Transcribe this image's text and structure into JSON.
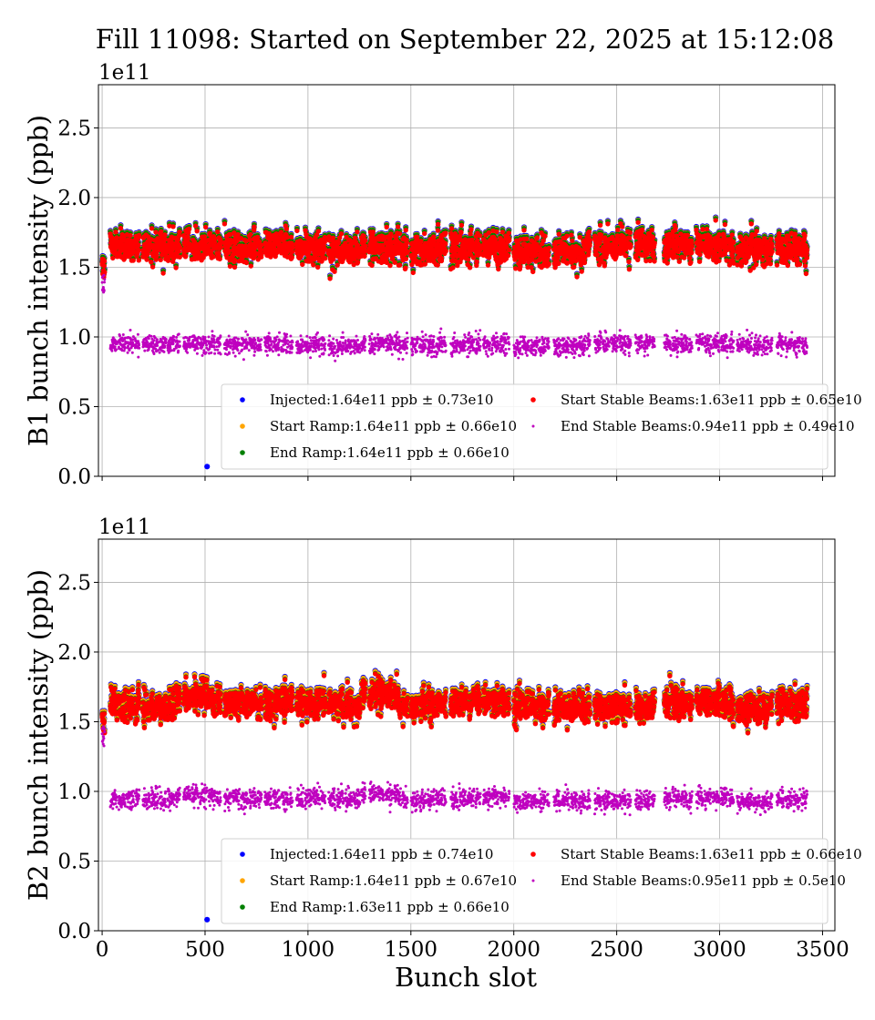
{
  "chart_data": [
    {
      "type": "scatter",
      "title": "Fill 11098: Started on September 22, 2025 at 15:12:08",
      "xlabel": "",
      "ylabel": "B1 bunch intensity (ppb)",
      "offset_text": "1e11",
      "xlim": [
        -18,
        3560
      ],
      "ylim": [
        0,
        2.81
      ],
      "xticks": [
        "0",
        "500",
        "1000",
        "1500",
        "2000",
        "2500",
        "3000",
        "3500"
      ],
      "xtick_values": [
        0,
        500,
        1000,
        1500,
        2000,
        2500,
        3000,
        3500
      ],
      "show_xtick_labels": false,
      "yticks": [
        "0.0",
        "0.5",
        "1.0",
        "1.5",
        "2.0",
        "2.5"
      ],
      "ytick_values": [
        0,
        0.5,
        1.0,
        1.5,
        2.0,
        2.5
      ],
      "grid": true,
      "legend_position": "lower-right",
      "trains": [
        [
          40,
          180
        ],
        [
          198,
          378
        ],
        [
          396,
          576
        ],
        [
          594,
          774
        ],
        [
          790,
          925
        ],
        [
          944,
          1084
        ],
        [
          1100,
          1279
        ],
        [
          1298,
          1484
        ],
        [
          1501,
          1670
        ],
        [
          1694,
          1838
        ],
        [
          1852,
          1978
        ],
        [
          2001,
          2171
        ],
        [
          2195,
          2370
        ],
        [
          2393,
          2568
        ],
        [
          2591,
          2684
        ],
        [
          2731,
          2866
        ],
        [
          2887,
          3068
        ],
        [
          3085,
          3255
        ],
        [
          3278,
          3425
        ]
      ],
      "pilot_slots": [
        0,
        1,
        2,
        3,
        4,
        5,
        6,
        7,
        8,
        9,
        10,
        11,
        12
      ],
      "series": [
        {
          "name": "Injected",
          "legend": "Injected:1.64e11 ppb ± 0.73e10",
          "mean": 1.64,
          "std": 0.073,
          "color": "#0000ff",
          "outliers": [
            [
              510,
              0.07
            ]
          ]
        },
        {
          "name": "Start Ramp",
          "legend": "Start Ramp:1.64e11 ppb ± 0.66e10",
          "mean": 1.64,
          "std": 0.066,
          "color": "#ffa500"
        },
        {
          "name": "End Ramp",
          "legend": "End Ramp:1.64e11 ppb ± 0.66e10",
          "mean": 1.64,
          "std": 0.066,
          "color": "#008000"
        },
        {
          "name": "Start Stable Beams",
          "legend": "Start Stable Beams:1.63e11 ppb ± 0.65e10",
          "mean": 1.63,
          "std": 0.065,
          "color": "#ff0000"
        },
        {
          "name": "End Stable Beams",
          "legend": "End Stable Beams:0.94e11 ppb ± 0.49e10",
          "mean": 0.94,
          "std": 0.049,
          "color": "#bf00bf"
        }
      ]
    },
    {
      "type": "scatter",
      "xlabel": "Bunch slot",
      "ylabel": "B2 bunch intensity (ppb)",
      "offset_text": "1e11",
      "xlim": [
        -18,
        3560
      ],
      "ylim": [
        0,
        2.81
      ],
      "xticks": [
        "0",
        "500",
        "1000",
        "1500",
        "2000",
        "2500",
        "3000",
        "3500"
      ],
      "xtick_values": [
        0,
        500,
        1000,
        1500,
        2000,
        2500,
        3000,
        3500
      ],
      "show_xtick_labels": true,
      "yticks": [
        "0.0",
        "0.5",
        "1.0",
        "1.5",
        "2.0",
        "2.5"
      ],
      "ytick_values": [
        0,
        0.5,
        1.0,
        1.5,
        2.0,
        2.5
      ],
      "grid": true,
      "legend_position": "lower-right",
      "trains": [
        [
          40,
          180
        ],
        [
          198,
          378
        ],
        [
          396,
          576
        ],
        [
          594,
          774
        ],
        [
          790,
          925
        ],
        [
          944,
          1084
        ],
        [
          1100,
          1279
        ],
        [
          1298,
          1484
        ],
        [
          1501,
          1670
        ],
        [
          1694,
          1838
        ],
        [
          1852,
          1978
        ],
        [
          2001,
          2171
        ],
        [
          2195,
          2370
        ],
        [
          2393,
          2568
        ],
        [
          2591,
          2684
        ],
        [
          2731,
          2866
        ],
        [
          2887,
          3068
        ],
        [
          3085,
          3255
        ],
        [
          3278,
          3425
        ]
      ],
      "pilot_slots": [
        0,
        1,
        2,
        3,
        4,
        5,
        6,
        7,
        8,
        9,
        10,
        11,
        12
      ],
      "series": [
        {
          "name": "Injected",
          "legend": "Injected:1.64e11 ppb ± 0.74e10",
          "mean": 1.64,
          "std": 0.074,
          "color": "#0000ff",
          "outliers": [
            [
              510,
              0.08
            ]
          ]
        },
        {
          "name": "Start Ramp",
          "legend": "Start Ramp:1.64e11 ppb ± 0.67e10",
          "mean": 1.64,
          "std": 0.067,
          "color": "#ffa500"
        },
        {
          "name": "End Ramp",
          "legend": "End Ramp:1.63e11 ppb ± 0.66e10",
          "mean": 1.63,
          "std": 0.066,
          "color": "#008000"
        },
        {
          "name": "Start Stable Beams",
          "legend": "Start Stable Beams:1.63e11 ppb ± 0.66e10",
          "mean": 1.63,
          "std": 0.066,
          "color": "#ff0000"
        },
        {
          "name": "End Stable Beams",
          "legend": "End Stable Beams:0.95e11 ppb ± 0.5e10",
          "mean": 0.95,
          "std": 0.05,
          "color": "#bf00bf"
        }
      ]
    }
  ]
}
